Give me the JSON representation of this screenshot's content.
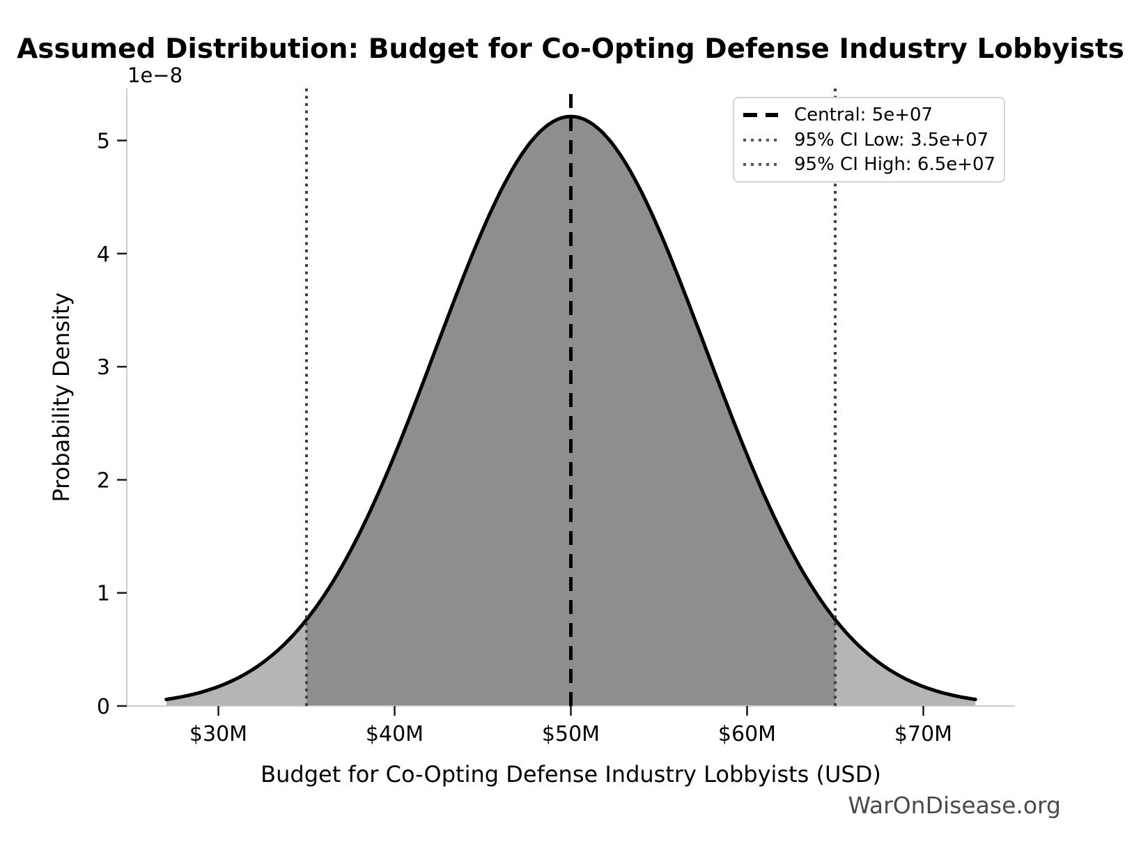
{
  "watermark": "WarOnDisease.org",
  "chart_data": {
    "type": "area",
    "subtype": "normal-distribution-pdf",
    "title": "Assumed Distribution: Budget for Co-Opting Defense Industry Lobbyists",
    "xlabel": "Budget for Co-Opting Defense Industry Lobbyists (USD)",
    "ylabel": "Probability Density",
    "y_scale_offset_label": "1e−8",
    "mean": 50000000,
    "sigma": 7653061,
    "ci_low": 35000000,
    "ci_high": 65000000,
    "peak_density": 5.21e-08,
    "curve_x_range": [
      27040816,
      72959184
    ],
    "x_range": [
      24800000,
      75200000
    ],
    "y_range": [
      0,
      5.46e-08
    ],
    "grid": false,
    "legend_position": "upper right",
    "x_ticks": [
      {
        "value": 30000000,
        "label": "$30M"
      },
      {
        "value": 40000000,
        "label": "$40M"
      },
      {
        "value": 50000000,
        "label": "$50M"
      },
      {
        "value": 60000000,
        "label": "$60M"
      },
      {
        "value": 70000000,
        "label": "$70M"
      }
    ],
    "y_ticks": [
      {
        "value": 0,
        "label": "0"
      },
      {
        "value": 1e-08,
        "label": "1"
      },
      {
        "value": 2e-08,
        "label": "2"
      },
      {
        "value": 3e-08,
        "label": "3"
      },
      {
        "value": 4e-08,
        "label": "4"
      },
      {
        "value": 5e-08,
        "label": "5"
      }
    ],
    "legend": [
      {
        "label": "Central: 5e+07",
        "style": "dashed",
        "color": "#000000"
      },
      {
        "label": "95% CI Low: 3.5e+07",
        "style": "dotted",
        "color": "#555555"
      },
      {
        "label": "95% CI High: 6.5e+07",
        "style": "dotted",
        "color": "#555555"
      }
    ],
    "colors": {
      "curve": "#000000",
      "fill_tails": "#b5b5b5",
      "fill_ci": "#8e8e8e",
      "central_line": "#000000",
      "ci_line": "#404040",
      "spine": "#cccccc",
      "tick": "#1a1a1a",
      "watermark": "#4a4a4a"
    }
  }
}
